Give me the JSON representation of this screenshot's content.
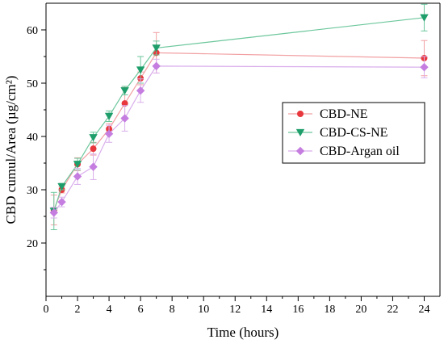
{
  "chart_data": {
    "type": "line",
    "title": "",
    "xlabel": "Time (hours)",
    "ylabel": "CBD cumul/Area (µg/cm²)",
    "xlim": [
      0,
      25
    ],
    "ylim": [
      10,
      65
    ],
    "xticks": [
      0,
      2,
      4,
      6,
      8,
      10,
      12,
      14,
      16,
      18,
      20,
      22,
      24
    ],
    "yticks": [
      20,
      30,
      40,
      50,
      60
    ],
    "x": [
      0.5,
      1,
      2,
      3,
      4,
      5,
      6,
      7,
      24
    ],
    "grid": false,
    "legend_position": "right",
    "error_bars": true,
    "series": [
      {
        "name": "CBD-NE",
        "marker": "circle",
        "color": "#e8383d",
        "line_color": "#f2a0a3",
        "values": [
          26.2,
          30.0,
          34.8,
          37.7,
          41.4,
          46.2,
          50.9,
          55.7,
          54.7
        ],
        "errors": [
          2.8,
          0.6,
          1.2,
          1.2,
          1.0,
          3.0,
          1.2,
          3.8,
          3.3
        ]
      },
      {
        "name": "CBD-CS-NE",
        "marker": "triangle-down",
        "color": "#1e9e6a",
        "line_color": "#6cc79c",
        "values": [
          26.0,
          30.6,
          34.8,
          39.8,
          43.8,
          48.6,
          52.5,
          56.6,
          62.3
        ],
        "errors": [
          3.5,
          0.6,
          1.1,
          1.0,
          1.0,
          0.8,
          2.5,
          1.3,
          2.5
        ]
      },
      {
        "name": "CBD-Argan oil",
        "marker": "diamond",
        "color": "#c57ee0",
        "line_color": "#d9aeec",
        "values": [
          25.7,
          27.7,
          32.5,
          34.3,
          40.5,
          43.4,
          48.6,
          53.2,
          53.0
        ],
        "errors": [
          1.0,
          0.9,
          1.5,
          2.4,
          1.6,
          2.4,
          2.2,
          1.3,
          2.0
        ]
      }
    ]
  }
}
